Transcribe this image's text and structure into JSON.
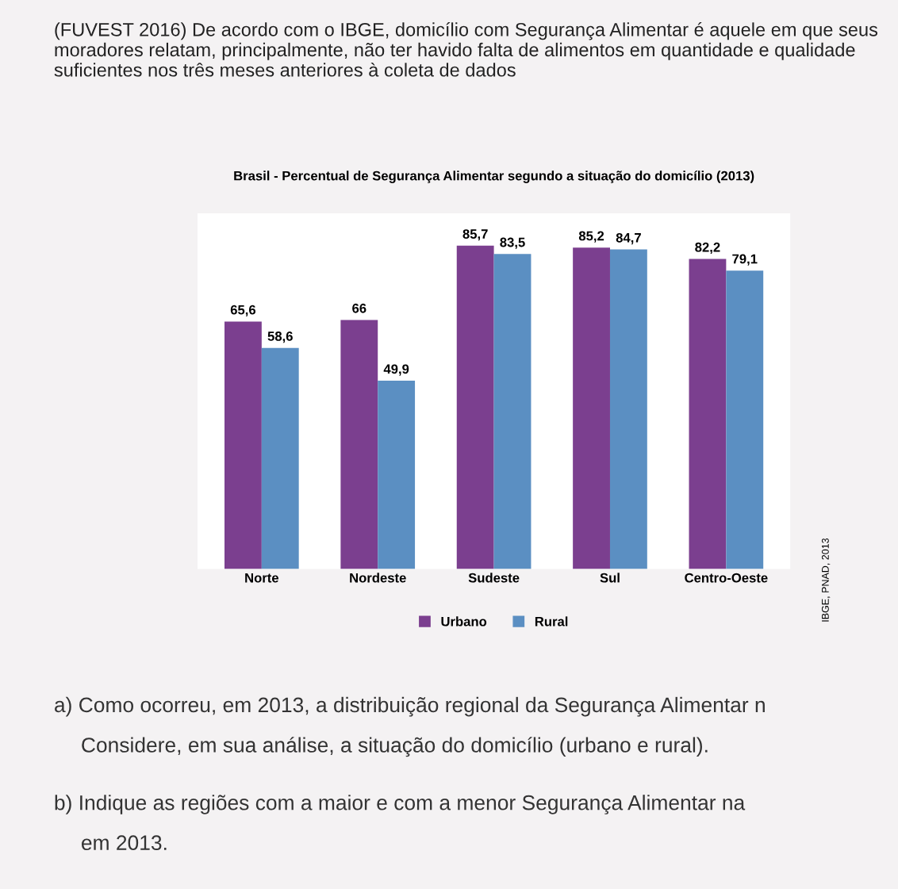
{
  "chart_data": {
    "type": "bar",
    "title": "Brasil - Percentual de Segurança Alimentar segundo a situação do domicílio (2013)",
    "subtitle": "(FUVEST 2016) De acordo com o IBGE, domicílio com Segurança Alimentar é aquele em que seus moradores relatam, principalmente, não ter havido falta de alimentos em quantidade e qualidade suficientes nos três meses anteriores à coleta de dados",
    "categories": [
      "Norte",
      "Nordeste",
      "Sudeste",
      "Sul",
      "Centro-Oeste"
    ],
    "series": [
      {
        "name": "Urbano",
        "color": "#7b3f8f",
        "values": [
          65.6,
          66,
          85.7,
          85.2,
          82.2
        ],
        "value_labels": [
          "65,6",
          "66",
          "85,7",
          "85,2",
          "82,2"
        ]
      },
      {
        "name": "Rural",
        "color": "#5b8fc2",
        "values": [
          58.6,
          49.9,
          83.5,
          84.7,
          79.1
        ],
        "value_labels": [
          "58,6",
          "49,9",
          "83,5",
          "84,7",
          "79,1"
        ]
      }
    ],
    "legend": "bottom",
    "grid": false,
    "annotations": [
      "IBGE, PNAD, 2013",
      "a) Como ocorreu, em 2013, a distribuição regional da Segurança Alimentar n",
      "Considere, em sua análise, a situação do domicílio (urbano e rural).",
      "b) Indique as regiões com a maior e com a menor Segurança Alimentar na",
      "em 2013."
    ]
  }
}
